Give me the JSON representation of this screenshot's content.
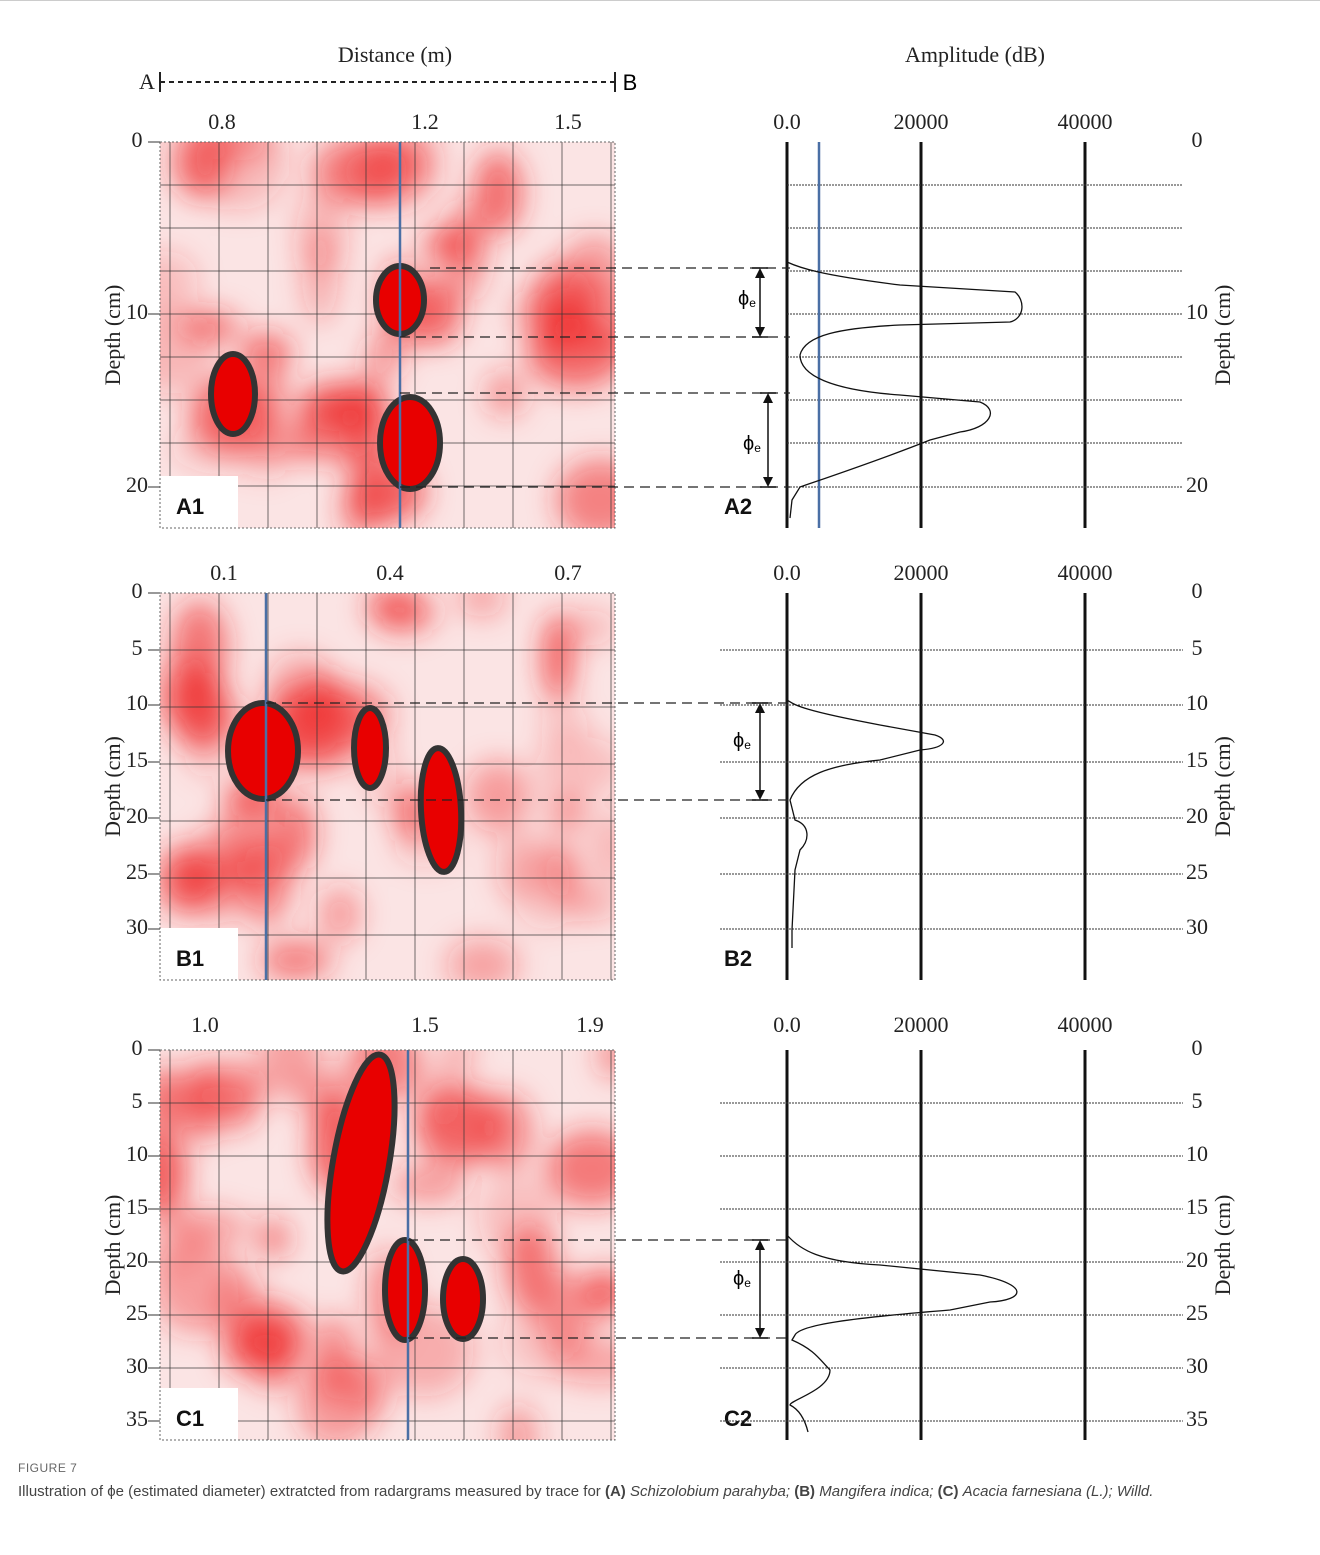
{
  "header": {
    "distance_label": "Distance (m)",
    "amplitude_label": "Amplitude (dB)",
    "start": "A",
    "end": "B"
  },
  "diameter_symbol": "ϕ",
  "diameter_subscript": "e",
  "depth_label": "Depth (cm)",
  "panels": [
    {
      "radargram_label": "A1",
      "profile_label": "A2",
      "distance_ticks": [
        "0.8",
        "1.2",
        "1.5"
      ],
      "amplitude_ticks": [
        "0.0",
        "20000",
        "40000"
      ],
      "depth_ticks": [
        "0",
        "10",
        "20"
      ]
    },
    {
      "radargram_label": "B1",
      "profile_label": "B2",
      "distance_ticks": [
        "0.1",
        "0.4",
        "0.7"
      ],
      "amplitude_ticks": [
        "0.0",
        "20000",
        "40000"
      ],
      "depth_ticks": [
        "0",
        "5",
        "10",
        "15",
        "20",
        "25",
        "30"
      ]
    },
    {
      "radargram_label": "C1",
      "profile_label": "C2",
      "distance_ticks": [
        "1.0",
        "1.5",
        "1.9"
      ],
      "amplitude_ticks": [
        "0.0",
        "20000",
        "40000"
      ],
      "depth_ticks": [
        "0",
        "5",
        "10",
        "15",
        "20",
        "25",
        "30",
        "35"
      ]
    }
  ],
  "caption": {
    "figure": "FIGURE 7",
    "segments": [
      "Illustration of ϕe (estimated diameter) extratcted from radargrams measured by trace for",
      "(A)",
      "Schizolobium parahyba;",
      "(B)",
      "Mangifera indica;",
      "(C)",
      "Acacia farnesiana (L.); Willd."
    ]
  }
}
